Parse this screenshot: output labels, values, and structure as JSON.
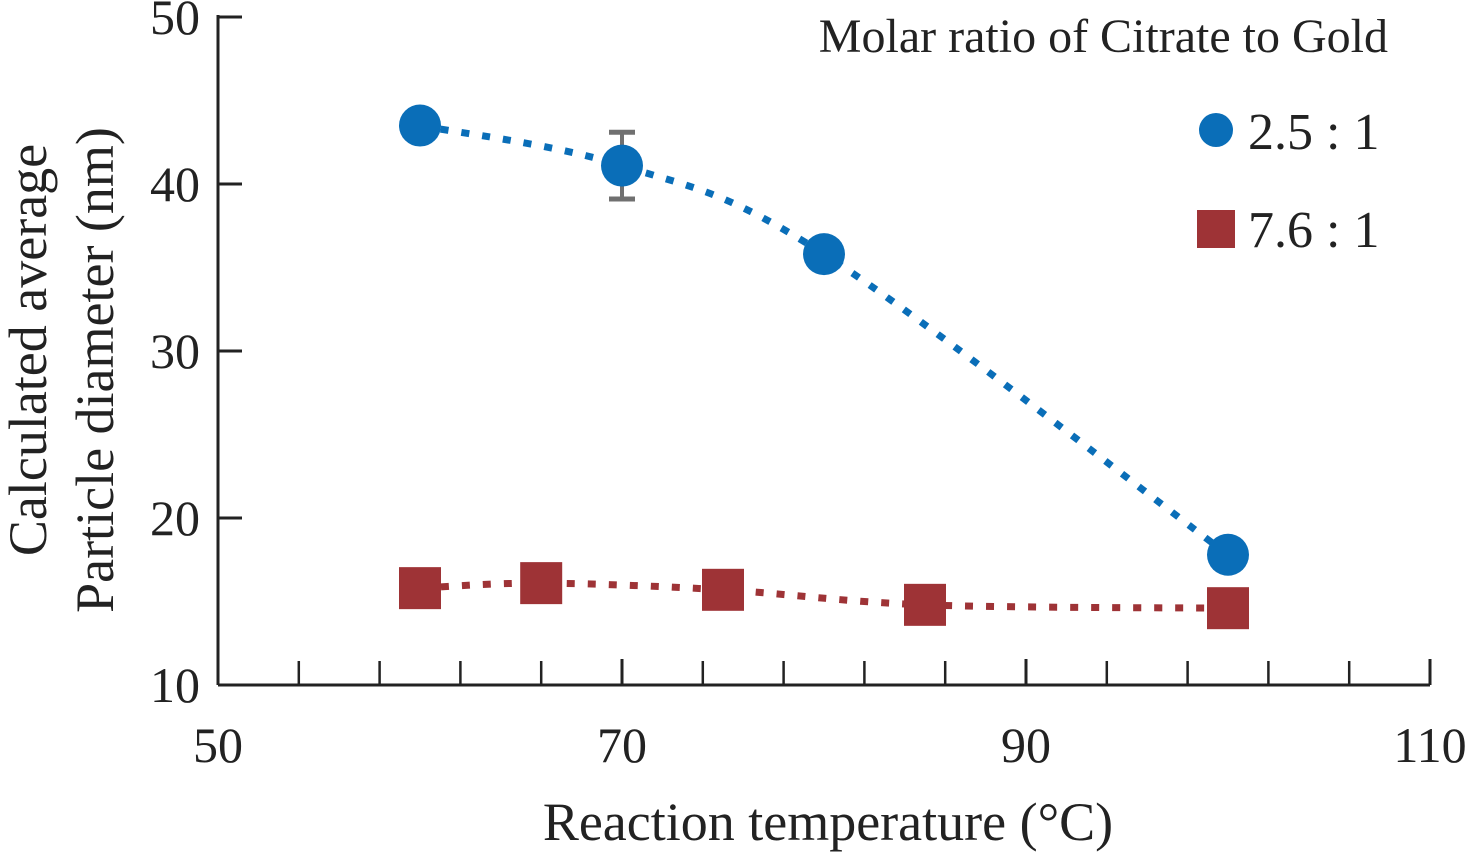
{
  "chart_data": {
    "type": "scatter",
    "title": "",
    "xlabel": "Reaction temperature (°C)",
    "ylabel_lines": [
      "Calculated average",
      "Particle diameter (nm)"
    ],
    "xlim": [
      50,
      110
    ],
    "ylim": [
      10,
      50
    ],
    "x_major_ticks": [
      50,
      70,
      90,
      110
    ],
    "x_major_tick_labels": [
      "50",
      "70",
      "90",
      "110"
    ],
    "x_minor_ticks": [
      54,
      58,
      62,
      66,
      74,
      78,
      82,
      86,
      94,
      98,
      102,
      106
    ],
    "y_ticks": [
      10,
      20,
      30,
      40,
      50
    ],
    "y_tick_labels": [
      "10",
      "20",
      "30",
      "40",
      "50"
    ],
    "grid": false,
    "legend_title": "Molar ratio of Citrate to Gold",
    "legend_position": "top-right",
    "series": [
      {
        "name": "2.5 : 1",
        "marker": "circle",
        "color": "#0a6eb8",
        "x": [
          60,
          70,
          80,
          100
        ],
        "y": [
          43.5,
          41.1,
          35.8,
          17.8
        ],
        "error_bars": [
          {
            "x": 70,
            "y_low": 39.1,
            "y_high": 43.1
          }
        ]
      },
      {
        "name": "7.6 : 1",
        "marker": "square",
        "color": "#9e3336",
        "x": [
          60,
          66,
          75,
          85,
          100
        ],
        "y": [
          15.8,
          16.1,
          15.7,
          14.8,
          14.6
        ],
        "error_bars": []
      }
    ],
    "error_bar_color": "#707070"
  }
}
